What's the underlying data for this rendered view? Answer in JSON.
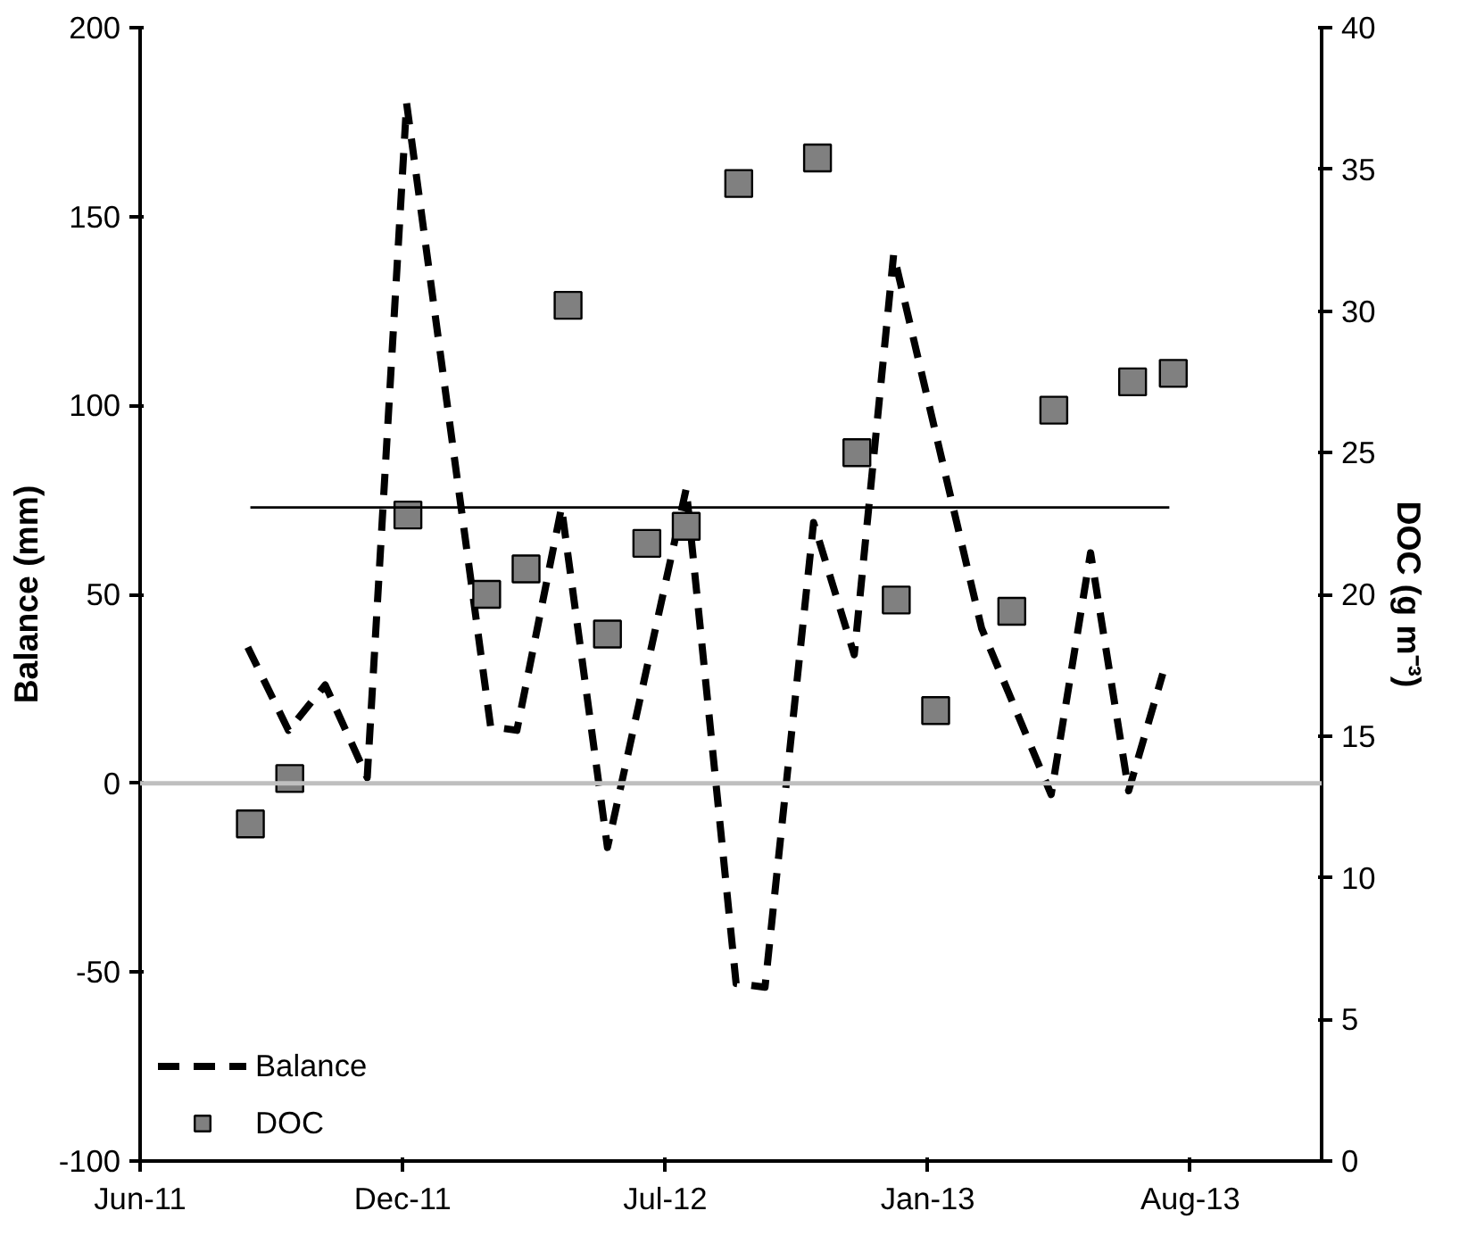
{
  "chart_data": {
    "type": "line",
    "xlabel": null,
    "ylabel": "Balance (mm)",
    "y2label": "DOC (g m⁻³)",
    "xlim": [
      "2011-06-01",
      "2013-11-17"
    ],
    "xticks": [
      {
        "value": "2011-06-01",
        "label": "Jun-11"
      },
      {
        "value": "2011-12-18",
        "label": "Dec-11"
      },
      {
        "value": "2012-07-05",
        "label": "Jul-12"
      },
      {
        "value": "2013-01-21",
        "label": "Jan-13"
      },
      {
        "value": "2013-08-09",
        "label": "Aug-13"
      }
    ],
    "ylim": [
      -100,
      200
    ],
    "yticks": [
      -100,
      -50,
      0,
      50,
      100,
      150,
      200
    ],
    "y2lim": [
      0,
      40
    ],
    "y2ticks": [
      0,
      5,
      10,
      15,
      20,
      25,
      30,
      35,
      40
    ],
    "grid": false,
    "legend": "bottom left",
    "ref_lines": [
      {
        "axis": "y",
        "value": 0,
        "color": "#bfbfbf"
      }
    ],
    "series": [
      {
        "name": "Balance",
        "color": "#000000",
        "line_style": "dashed",
        "marker": "none",
        "x": [
          "2011-08-22",
          "2011-09-22",
          "2011-10-20",
          "2011-11-21",
          "2011-12-21",
          "2012-02-23",
          "2012-03-14",
          "2012-04-17",
          "2012-05-22",
          "2012-07-21",
          "2012-08-28",
          "2012-09-19",
          "2012-10-26",
          "2012-11-26",
          "2012-12-26",
          "2013-03-03",
          "2013-04-25",
          "2013-05-25",
          "2013-06-23",
          "2013-07-19"
        ],
        "values": [
          36,
          14,
          26,
          1.5,
          180,
          15,
          14,
          73,
          -17,
          78,
          -53,
          -54,
          69,
          34,
          140,
          41,
          -3,
          61,
          -2,
          29
        ]
      },
      {
        "name": "DOC",
        "type": "scatter",
        "axis": "y2",
        "color": "#808080",
        "marker": "square",
        "x": [
          "2011-08-24",
          "2011-09-23",
          "2011-12-22",
          "2012-02-20",
          "2012-03-21",
          "2012-04-22",
          "2012-05-22",
          "2012-06-21",
          "2012-07-21",
          "2012-08-30",
          "2012-10-29",
          "2012-11-28",
          "2012-12-28",
          "2013-01-27",
          "2013-03-26",
          "2013-04-27",
          "2013-06-26",
          "2013-07-27"
        ],
        "values": [
          11.9,
          13.5,
          22.8,
          20.0,
          20.9,
          30.2,
          18.6,
          21.8,
          22.4,
          34.5,
          35.4,
          25.0,
          19.8,
          15.9,
          19.4,
          26.5,
          27.5,
          27.8
        ]
      },
      {
        "color": "#000000",
        "line_style": "solid",
        "marker": "none",
        "x": [
          "2011-08-24",
          "2013-07-24"
        ],
        "values": [
          73,
          73
        ]
      }
    ]
  }
}
